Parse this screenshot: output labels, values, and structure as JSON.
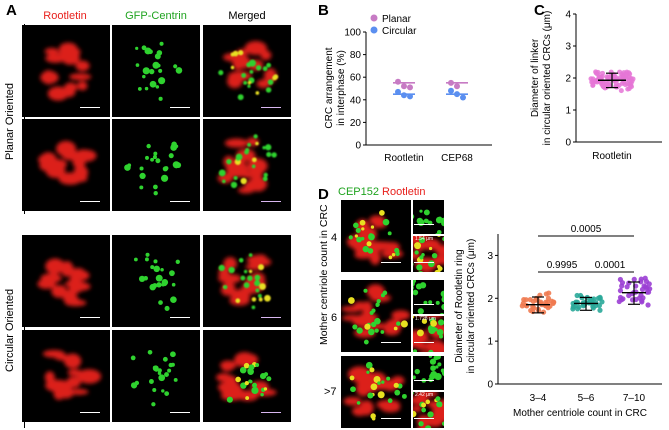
{
  "panels": {
    "a": "A",
    "b": "B",
    "c": "C",
    "d": "D"
  },
  "panel_a": {
    "col_headers": [
      "Rootletin",
      "GFP-Centrin",
      "Merged"
    ],
    "row_groups": [
      "Planar Oriented",
      "Circular Oriented"
    ]
  },
  "panel_d": {
    "header_cep152": "CEP152",
    "header_rootletin": "Rootletin",
    "side_label": "Mother centriole count in CRC",
    "row_labels": [
      "4",
      "6",
      ">7"
    ],
    "inset_values": [
      "1.54 μm",
      "1.728 μm",
      "2.42 μm"
    ]
  },
  "colors": {
    "rootletin_red": "#e8201c",
    "centrin_green": "#1fa31f",
    "planar": "#c77bc4",
    "circular": "#5b8ff0",
    "orange": "#f07a50",
    "teal": "#2aa899",
    "purple": "#9b3fd4",
    "pink": "#e575d6"
  },
  "chart_data": [
    {
      "id": "B",
      "type": "scatter",
      "ylabel": "CRC arrangement in interphase (%)",
      "categories": [
        "Rootletin",
        "CEP68"
      ],
      "ylim": [
        0,
        100
      ],
      "yticks": [
        0,
        20,
        40,
        60,
        80,
        100
      ],
      "legend": [
        "Planar",
        "Circular"
      ],
      "series": [
        {
          "name": "Planar",
          "points": [
            [
              0,
              56
            ],
            [
              0,
              52
            ],
            [
              0,
              51
            ],
            [
              1,
              55
            ],
            [
              1,
              52
            ]
          ],
          "mean": [
            55,
            55
          ]
        },
        {
          "name": "Circular",
          "points": [
            [
              0,
              47
            ],
            [
              0,
              44
            ],
            [
              0,
              43
            ],
            [
              1,
              48
            ],
            [
              1,
              45
            ],
            [
              1,
              42
            ]
          ],
          "mean": [
            45,
            45
          ]
        }
      ]
    },
    {
      "id": "C",
      "type": "scatter",
      "ylabel": "Diameter of linker in circular oriented CRCs (μm)",
      "categories": [
        "Rootletin"
      ],
      "ylim": [
        0,
        4
      ],
      "yticks": [
        0,
        1,
        2,
        3,
        4
      ],
      "mean": 1.93,
      "sd": [
        1.7,
        2.15
      ],
      "range": [
        1.45,
        2.85
      ]
    },
    {
      "id": "D",
      "type": "scatter",
      "ylabel": "Diameter of Rootletin ring in circular oriented CRCs (μm)",
      "xlabel": "Mother centriole count in CRC",
      "categories": [
        "3–4",
        "5–6",
        "7–10"
      ],
      "ylim": [
        0,
        3.5
      ],
      "yticks": [
        0,
        1,
        2,
        3
      ],
      "means": [
        1.85,
        1.88,
        2.13
      ],
      "sds": [
        [
          1.66,
          2.03
        ],
        [
          1.72,
          2.02
        ],
        [
          1.86,
          2.38
        ]
      ],
      "ranges": [
        [
          1.35,
          2.5
        ],
        [
          1.5,
          2.32
        ],
        [
          1.45,
          2.9
        ]
      ],
      "comparisons": [
        {
          "from": 0,
          "to": 2,
          "p": "0.0005"
        },
        {
          "from": 0,
          "to": 1,
          "p": "0.9995"
        },
        {
          "from": 1,
          "to": 2,
          "p": "0.0001"
        }
      ]
    }
  ]
}
